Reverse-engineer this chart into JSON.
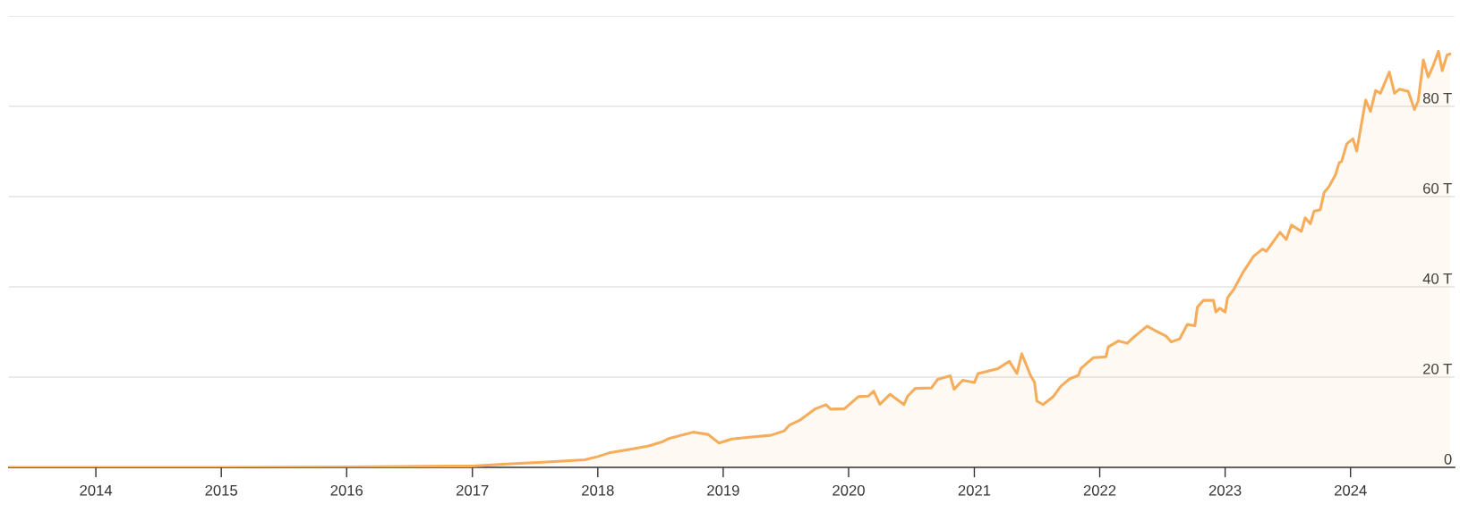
{
  "chart_data": {
    "type": "area",
    "x": [
      "2013-04-23",
      "2014-01-01",
      "2015-01-01",
      "2016-01-01",
      "2017-01-01",
      "2017-03-28",
      "2017-08-04",
      "2017-11-24",
      "2018-01-01",
      "2018-02-03",
      "2018-04-05",
      "2018-05-27",
      "2018-07-09",
      "2018-07-27",
      "2018-10-05",
      "2018-11-18",
      "2018-12-20",
      "2019-01-26",
      "2019-03-18",
      "2019-05-19",
      "2019-06-28",
      "2019-07-13",
      "2019-08-11",
      "2019-09-27",
      "2019-10-27",
      "2019-11-10",
      "2019-12-20",
      "2020-01-30",
      "2020-02-28",
      "2020-03-14",
      "2020-04-01",
      "2020-05-01",
      "2020-06-10",
      "2020-06-21",
      "2020-07-13",
      "2020-08-29",
      "2020-09-16",
      "2020-10-23",
      "2020-11-03",
      "2020-11-28",
      "2021-01-01",
      "2021-01-12",
      "2021-03-11",
      "2021-04-13",
      "2021-05-05",
      "2021-05-19",
      "2021-06-14",
      "2021-06-25",
      "2021-07-02",
      "2021-07-20",
      "2021-08-19",
      "2021-09-10",
      "2021-10-05",
      "2021-10-31",
      "2021-11-07",
      "2021-12-13",
      "2022-01-19",
      "2022-01-26",
      "2022-02-24",
      "2022-03-22",
      "2022-04-09",
      "2022-05-19",
      "2022-06-14",
      "2022-07-13",
      "2022-07-28",
      "2022-08-22",
      "2022-09-13",
      "2022-10-05",
      "2022-10-12",
      "2022-10-30",
      "2022-11-28",
      "2022-12-05",
      "2022-12-16",
      "2023-01-01",
      "2023-01-08",
      "2023-01-26",
      "2023-02-21",
      "2023-03-25",
      "2023-04-20",
      "2023-05-01",
      "2023-06-10",
      "2023-06-28",
      "2023-07-13",
      "2023-08-11",
      "2023-08-22",
      "2023-09-06",
      "2023-09-17",
      "2023-10-05",
      "2023-10-16",
      "2023-10-31",
      "2023-11-18",
      "2023-11-29",
      "2023-12-06",
      "2023-12-21",
      "2024-01-08",
      "2024-01-19",
      "2024-02-14",
      "2024-02-28",
      "2024-03-14",
      "2024-03-28",
      "2024-04-23",
      "2024-05-08",
      "2024-05-22",
      "2024-06-17",
      "2024-07-05",
      "2024-07-16",
      "2024-07-31",
      "2024-08-14",
      "2024-08-29",
      "2024-09-13",
      "2024-09-24",
      "2024-10-08",
      "2024-10-16"
    ],
    "series": [
      {
        "color": "#f5ad5b",
        "values": [
          0.0,
          0.0,
          0.0,
          0.1,
          0.3,
          0.7,
          1.2,
          1.7,
          2.4,
          3.2,
          4.0,
          4.7,
          5.7,
          6.4,
          7.8,
          7.3,
          5.4,
          6.3,
          6.7,
          7.1,
          8.1,
          9.4,
          10.4,
          13.0,
          13.9,
          12.9,
          13.0,
          15.7,
          15.8,
          16.9,
          14.0,
          16.2,
          13.9,
          15.8,
          17.5,
          17.6,
          19.5,
          20.3,
          17.3,
          19.3,
          18.8,
          20.8,
          21.9,
          23.5,
          20.8,
          25.2,
          20.3,
          18.9,
          14.7,
          13.9,
          15.7,
          18.0,
          19.6,
          20.4,
          21.9,
          24.3,
          24.5,
          26.7,
          28.0,
          27.5,
          28.8,
          31.3,
          30.2,
          29.1,
          27.8,
          28.5,
          31.7,
          31.4,
          35.5,
          37.0,
          37.0,
          34.4,
          35.3,
          34.4,
          37.6,
          39.4,
          43.1,
          46.8,
          48.4,
          47.9,
          52.1,
          50.5,
          53.7,
          52.3,
          55.3,
          54.0,
          56.8,
          57.1,
          60.9,
          62.3,
          64.8,
          67.5,
          67.8,
          71.7,
          72.8,
          70.1,
          81.4,
          78.9,
          83.5,
          82.9,
          87.6,
          82.9,
          83.8,
          83.3,
          79.3,
          81.2,
          90.3,
          86.5,
          89.1,
          92.2,
          87.9,
          91.4,
          91.6
        ]
      }
    ],
    "xlim": [
      "2013-04-23",
      "2024-10-30"
    ],
    "xticks": [
      "2014",
      "2015",
      "2016",
      "2017",
      "2018",
      "2019",
      "2020",
      "2021",
      "2022",
      "2023",
      "2024"
    ],
    "ylim": [
      0,
      100
    ],
    "yticks": [
      0,
      {
        "value": 20,
        "label": "20 T"
      },
      {
        "value": 40,
        "label": "40 T"
      },
      {
        "value": 60,
        "label": "60 T"
      },
      {
        "value": 80,
        "label": "80 T"
      },
      {
        "value": 100,
        "label": null
      }
    ],
    "grid": "y",
    "legend": false
  }
}
